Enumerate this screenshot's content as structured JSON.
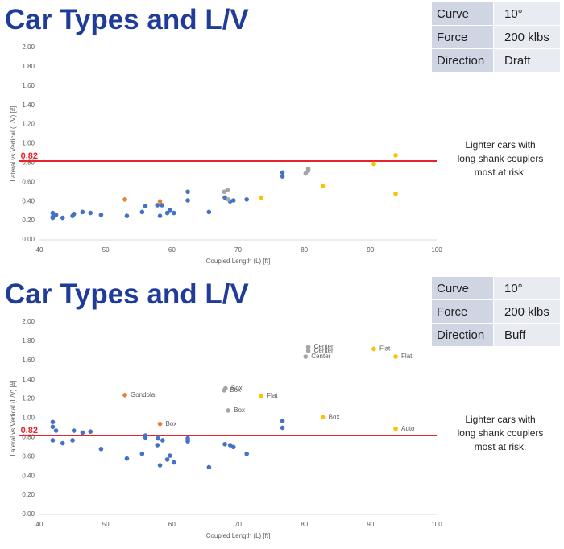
{
  "chart_data": [
    {
      "type": "scatter",
      "title": "Car Types and L/V",
      "info_table": [
        [
          "Curve",
          "10°"
        ],
        [
          "Force",
          "200 klbs"
        ],
        [
          "Direction",
          "Draft"
        ]
      ],
      "x_label": "Coupled Length (L) [ft]",
      "y_label": "Lateral vs Vertical (L/V) [#]",
      "xlim": [
        40,
        100
      ],
      "xticks": [
        40,
        50,
        60,
        70,
        80,
        90,
        100
      ],
      "ylim": [
        0,
        2
      ],
      "yticks": [
        {
          "value": 0,
          "label": "0.00"
        },
        {
          "value": 0.2,
          "label": "0.20"
        },
        {
          "value": 0.4,
          "label": "0.40"
        },
        {
          "value": 0.6,
          "label": "0.60"
        },
        {
          "value": 0.8,
          "label": "0.80"
        },
        {
          "value": 1,
          "label": "1.00"
        },
        {
          "value": 1.2,
          "label": "1.20"
        },
        {
          "value": 1.4,
          "label": "1.40"
        },
        {
          "value": 1.6,
          "label": "1.60"
        },
        {
          "value": 1.8,
          "label": "1.80"
        },
        {
          "value": 2,
          "label": "2.00"
        }
      ],
      "grid": false,
      "reference_line": {
        "value": 0.82,
        "color": "#e8232a"
      },
      "annotation": [
        "Lighter cars with",
        "long shank couplers",
        "most at risk."
      ],
      "series": [
        {
          "color": "#4472c4",
          "x": [
            42,
            42,
            42,
            42.5,
            43.5,
            45,
            45.2,
            46.5,
            47.7,
            49.3,
            53.2,
            55.5,
            56,
            57.8,
            58.2,
            58.5,
            59.3,
            59.7,
            60.3,
            62.4,
            62.4,
            65.6,
            68,
            68.8,
            69.3,
            71.3,
            76.7,
            76.7
          ],
          "values": [
            0.28,
            0.24,
            0.23,
            0.26,
            0.23,
            0.25,
            0.27,
            0.29,
            0.28,
            0.26,
            0.25,
            0.29,
            0.35,
            0.36,
            0.25,
            0.36,
            0.28,
            0.31,
            0.28,
            0.5,
            0.41,
            0.29,
            0.44,
            0.4,
            0.41,
            0.42,
            0.7,
            0.66
          ]
        },
        {
          "color": "#ed7d31",
          "x": [
            52.9,
            58.2
          ],
          "values": [
            0.42,
            0.4
          ]
        },
        {
          "color": "#a5a5a5",
          "x": [
            67.9,
            68.4,
            68.5,
            80.2,
            80.6,
            80.6
          ],
          "values": [
            0.5,
            0.52,
            0.42,
            0.69,
            0.72,
            0.74
          ]
        },
        {
          "color": "#ffc000",
          "x": [
            73.5,
            82.8,
            90.5,
            93.8,
            93.8
          ],
          "values": [
            0.44,
            0.56,
            0.79,
            0.88,
            0.48
          ]
        }
      ]
    },
    {
      "type": "scatter",
      "title": "Car Types and L/V",
      "info_table": [
        [
          "Curve",
          "10°"
        ],
        [
          "Force",
          "200 klbs"
        ],
        [
          "Direction",
          "Buff"
        ]
      ],
      "x_label": "Coupled Length (L) [ft]",
      "y_label": "Lateral vs Vertical (L/V) [#]",
      "xlim": [
        40,
        100
      ],
      "xticks": [
        40,
        50,
        60,
        70,
        80,
        90,
        100
      ],
      "ylim": [
        0,
        2
      ],
      "yticks": [
        {
          "value": 0,
          "label": "0.00"
        },
        {
          "value": 0.2,
          "label": "0.20"
        },
        {
          "value": 0.4,
          "label": "0.40"
        },
        {
          "value": 0.6,
          "label": "0.60"
        },
        {
          "value": 0.8,
          "label": "0.80"
        },
        {
          "value": 1,
          "label": "1.00"
        },
        {
          "value": 1.2,
          "label": "1.20"
        },
        {
          "value": 1.4,
          "label": "1.40"
        },
        {
          "value": 1.6,
          "label": "1.60"
        },
        {
          "value": 1.8,
          "label": "1.80"
        },
        {
          "value": 2,
          "label": "2.00"
        }
      ],
      "grid": false,
      "reference_line": {
        "value": 0.82,
        "color": "#e8232a"
      },
      "annotation": [
        "Lighter cars with",
        "long shank couplers",
        "most at risk."
      ],
      "series": [
        {
          "color": "#4472c4",
          "x": [
            42,
            42,
            42,
            42.5,
            43.5,
            45,
            45.2,
            46.5,
            47.7,
            49.3,
            53.2,
            55.5,
            56,
            56,
            57.8,
            57.9,
            58.2,
            58.6,
            59.3,
            59.7,
            60.3,
            62.4,
            62.4,
            65.6,
            68,
            68.8,
            69.3,
            71.3,
            76.7,
            76.7
          ],
          "values": [
            0.96,
            0.91,
            0.77,
            0.87,
            0.74,
            0.77,
            0.87,
            0.85,
            0.86,
            0.68,
            0.58,
            0.63,
            0.8,
            0.82,
            0.72,
            0.79,
            0.51,
            0.77,
            0.57,
            0.61,
            0.54,
            0.76,
            0.79,
            0.49,
            0.73,
            0.72,
            0.7,
            0.63,
            0.97,
            0.9
          ]
        },
        {
          "color": "#ed7d31",
          "x": [
            52.9,
            58.2
          ],
          "values": [
            1.24,
            0.94
          ],
          "point_labels": [
            "Gondola",
            "Box"
          ]
        },
        {
          "color": "#a5a5a5",
          "x": [
            67.9,
            68.1,
            68.5,
            80.2,
            80.6,
            80.6
          ],
          "values": [
            1.29,
            1.31,
            1.08,
            1.64,
            1.7,
            1.74
          ],
          "point_labels": [
            "Box",
            "Box",
            "Box",
            "Center",
            "Center",
            "Center"
          ]
        },
        {
          "color": "#ffc000",
          "x": [
            73.5,
            82.8,
            90.5,
            93.8,
            93.8
          ],
          "values": [
            1.23,
            1.01,
            1.72,
            1.64,
            0.89
          ],
          "point_labels": [
            "Flat",
            "Box",
            "Flat",
            "Flat",
            "Auto"
          ]
        }
      ]
    }
  ]
}
